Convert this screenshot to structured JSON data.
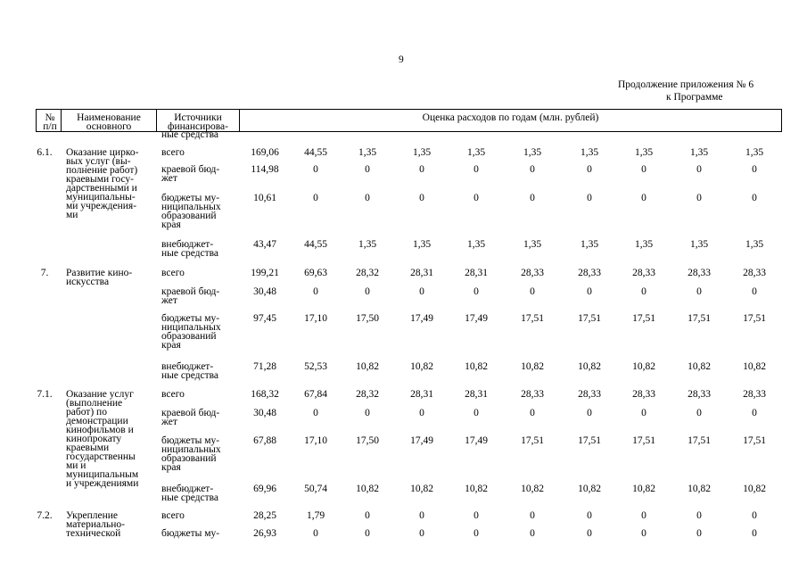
{
  "page_number": "9",
  "annex": [
    "Продолжение приложения № 6",
    "к Программе"
  ],
  "header": {
    "number": [
      "№",
      "п/п"
    ],
    "name": [
      "Наименование",
      "основного"
    ],
    "source": [
      "Источники",
      "финансирова-"
    ],
    "estimate": "Оценка расходов по годам (млн. рублей)"
  },
  "top_fragment": "ные средства",
  "blocks": [
    {
      "number": "6.1.",
      "name": [
        "Оказание цирко-",
        "вых услуг (вы-",
        "полнение работ)",
        "краевыми госу-",
        "дарственными и",
        "муниципальны-",
        "ми учреждения-",
        "ми"
      ],
      "rows": [
        {
          "source": [
            "всего"
          ],
          "values": [
            "169,06",
            "44,55",
            "1,35",
            "1,35",
            "1,35",
            "1,35",
            "1,35",
            "1,35",
            "1,35",
            "1,35"
          ]
        },
        {
          "source": [
            "краевой бюд-",
            "жет"
          ],
          "values": [
            "114,98",
            "0",
            "0",
            "0",
            "0",
            "0",
            "0",
            "0",
            "0",
            "0"
          ]
        },
        {
          "source": [
            "бюджеты му-",
            "ниципальных",
            "образований",
            "края"
          ],
          "values": [
            "10,61",
            "0",
            "0",
            "0",
            "0",
            "0",
            "0",
            "0",
            "0",
            "0"
          ]
        },
        {
          "source": [
            "внебюджет-",
            "ные средства"
          ],
          "values": [
            "43,47",
            "44,55",
            "1,35",
            "1,35",
            "1,35",
            "1,35",
            "1,35",
            "1,35",
            "1,35",
            "1,35"
          ]
        }
      ]
    },
    {
      "number": "7.",
      "name": [
        "Развитие кино-",
        "искусства"
      ],
      "rows": [
        {
          "source": [
            "всего"
          ],
          "values": [
            "199,21",
            "69,63",
            "28,32",
            "28,31",
            "28,31",
            "28,33",
            "28,33",
            "28,33",
            "28,33",
            "28,33"
          ]
        },
        {
          "source": [
            "краевой бюд-",
            "жет"
          ],
          "values": [
            "30,48",
            "0",
            "0",
            "0",
            "0",
            "0",
            "0",
            "0",
            "0",
            "0"
          ]
        },
        {
          "source": [
            "бюджеты му-",
            "ниципальных",
            "образований",
            "края"
          ],
          "values": [
            "97,45",
            "17,10",
            "17,50",
            "17,49",
            "17,49",
            "17,51",
            "17,51",
            "17,51",
            "17,51",
            "17,51"
          ]
        },
        {
          "source": [
            "внебюджет-",
            "ные средства"
          ],
          "values": [
            "71,28",
            "52,53",
            "10,82",
            "10,82",
            "10,82",
            "10,82",
            "10,82",
            "10,82",
            "10,82",
            "10,82"
          ]
        }
      ]
    },
    {
      "number": "7.1.",
      "name": [
        "Оказание услуг",
        "(выполнение",
        "работ) по",
        "демонстрации",
        "кинофильмов и",
        "кинопрокату",
        "краевыми",
        "государственны",
        "ми и",
        "муниципальным",
        "и учреждениями"
      ],
      "rows": [
        {
          "source": [
            "всего"
          ],
          "values": [
            "168,32",
            "67,84",
            "28,32",
            "28,31",
            "28,31",
            "28,33",
            "28,33",
            "28,33",
            "28,33",
            "28,33"
          ]
        },
        {
          "source": [
            "краевой бюд-",
            "жет"
          ],
          "values": [
            "30,48",
            "0",
            "0",
            "0",
            "0",
            "0",
            "0",
            "0",
            "0",
            "0"
          ]
        },
        {
          "source": [
            "бюджеты му-",
            "ниципальных",
            "образований",
            "края"
          ],
          "values": [
            "67,88",
            "17,10",
            "17,50",
            "17,49",
            "17,49",
            "17,51",
            "17,51",
            "17,51",
            "17,51",
            "17,51"
          ]
        },
        {
          "source": [
            "внебюджет-",
            "ные средства"
          ],
          "values": [
            "69,96",
            "50,74",
            "10,82",
            "10,82",
            "10,82",
            "10,82",
            "10,82",
            "10,82",
            "10,82",
            "10,82"
          ]
        }
      ]
    },
    {
      "number": "7.2.",
      "name": [
        "Укрепление",
        "материально-",
        "технической"
      ],
      "rows": [
        {
          "source": [
            "всего"
          ],
          "values": [
            "28,25",
            "1,79",
            "0",
            "0",
            "0",
            "0",
            "0",
            "0",
            "0",
            "0"
          ]
        },
        {
          "source": [
            "бюджеты му-"
          ],
          "values": [
            "26,93",
            "0",
            "0",
            "0",
            "0",
            "0",
            "0",
            "0",
            "0",
            "0"
          ]
        }
      ]
    }
  ]
}
